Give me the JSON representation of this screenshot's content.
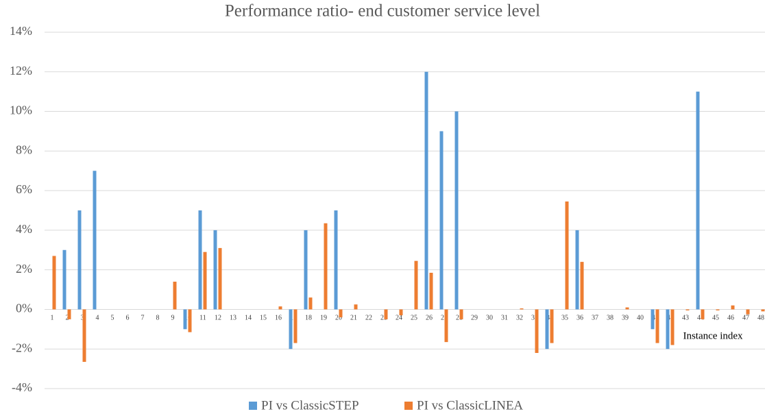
{
  "chart_data": {
    "type": "bar",
    "title": "Performance ratio- end customer service level",
    "x_label": "Instance index",
    "categories": [
      "1",
      "2",
      "3",
      "4",
      "5",
      "6",
      "7",
      "8",
      "9",
      "10",
      "11",
      "12",
      "13",
      "14",
      "15",
      "16",
      "17",
      "18",
      "19",
      "20",
      "21",
      "22",
      "23",
      "24",
      "25",
      "26",
      "27",
      "28",
      "29",
      "30",
      "31",
      "32",
      "33",
      "34",
      "35",
      "36",
      "37",
      "38",
      "39",
      "40",
      "41",
      "42",
      "43",
      "44",
      "45",
      "46",
      "47",
      "48"
    ],
    "series": [
      {
        "name": "PI vs ClassicSTEP",
        "color": "#5b9bd5",
        "values": [
          0,
          3,
          5,
          7,
          0,
          0,
          0,
          0,
          0,
          -1,
          5,
          4,
          0,
          0,
          0,
          0,
          -2,
          4,
          0,
          5,
          0,
          0,
          0,
          0,
          0,
          12,
          9,
          10,
          0,
          0,
          0,
          0,
          0,
          -2,
          0,
          4,
          0,
          0,
          0,
          0,
          -1,
          -2,
          0,
          11,
          0,
          0,
          0,
          0
        ]
      },
      {
        "name": "PI vs ClassicLINEA",
        "color": "#ed7d31",
        "values": [
          2.7,
          -0.5,
          -2.65,
          0,
          0,
          0,
          0,
          0,
          1.4,
          -1.15,
          2.9,
          3.1,
          0,
          0,
          0,
          0.15,
          -1.7,
          0.6,
          4.35,
          -0.4,
          0.25,
          0,
          -0.5,
          -0.3,
          2.45,
          1.85,
          -1.65,
          -0.5,
          0,
          0,
          0,
          0.05,
          -2.2,
          -1.7,
          5.45,
          2.4,
          0,
          0,
          0.1,
          0,
          -1.7,
          -1.8,
          -0.05,
          -0.5,
          -0.05,
          0.2,
          -0.25,
          -0.1
        ]
      }
    ],
    "ylim": [
      -4,
      14
    ],
    "yticks": [
      {
        "value": -4,
        "label": "-4%"
      },
      {
        "value": -2,
        "label": "-2%"
      },
      {
        "value": 0,
        "label": "0%"
      },
      {
        "value": 2,
        "label": "2%"
      },
      {
        "value": 4,
        "label": "4%"
      },
      {
        "value": 6,
        "label": "6%"
      },
      {
        "value": 8,
        "label": "8%"
      },
      {
        "value": 10,
        "label": "10%"
      },
      {
        "value": 12,
        "label": "12%"
      },
      {
        "value": 14,
        "label": "14%"
      }
    ],
    "grid": true,
    "legend": "bottom"
  }
}
